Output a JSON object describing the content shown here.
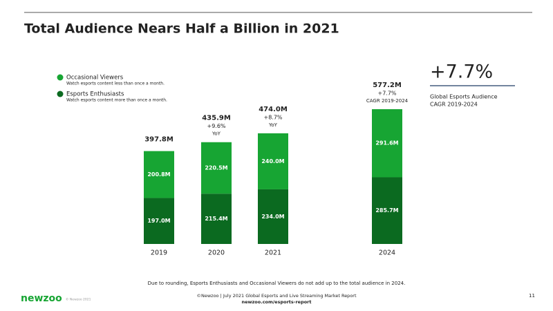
{
  "chart_data": {
    "type": "bar",
    "stacked": true,
    "title": "Total Audience Nears Half a Billion in 2021",
    "categories": [
      "2019",
      "2020",
      "2021",
      "2024"
    ],
    "series": [
      {
        "name": "Occasional Viewers",
        "description": "Watch esports content less than once a month.",
        "color": "#17a533",
        "values": [
          200.8,
          220.5,
          240.0,
          291.6
        ],
        "value_labels": [
          "200.8M",
          "220.5M",
          "240.0M",
          "291.6M"
        ]
      },
      {
        "name": "Esports Enthusiasts",
        "description": "Watch esports content more than once a month.",
        "color": "#0b6a20",
        "values": [
          197.0,
          215.4,
          234.0,
          285.7
        ],
        "value_labels": [
          "197.0M",
          "215.4M",
          "234.0M",
          "285.7M"
        ]
      }
    ],
    "totals": {
      "values": [
        397.8,
        435.9,
        474.0,
        577.2
      ],
      "value_labels": [
        "397.8M",
        "435.9M",
        "474.0M",
        "577.2M"
      ]
    },
    "growth": [
      null,
      {
        "value": 9.6,
        "label": "+9.6%",
        "note": "YoY"
      },
      {
        "value": 8.7,
        "label": "+8.7%",
        "note": "YoY"
      },
      {
        "value": 7.7,
        "label": "+7.7%",
        "note": "CAGR 2019-2024"
      }
    ],
    "callout": {
      "value": 7.7,
      "label": "+7.7%",
      "lines": [
        "Global Esports Audience",
        "CAGR 2019-2024"
      ]
    },
    "footnote": "Due to rounding, Esports Enthusiasts and Occasional Viewers do not add up to the total audience in 2024."
  },
  "footer": {
    "logo": "newzoo",
    "copyright": "© Newzoo 2021",
    "source": "©Newzoo | July 2021 Global Esports and Live Streaming Market Report",
    "url": "newzoo.com/esports-report",
    "page": "11"
  }
}
